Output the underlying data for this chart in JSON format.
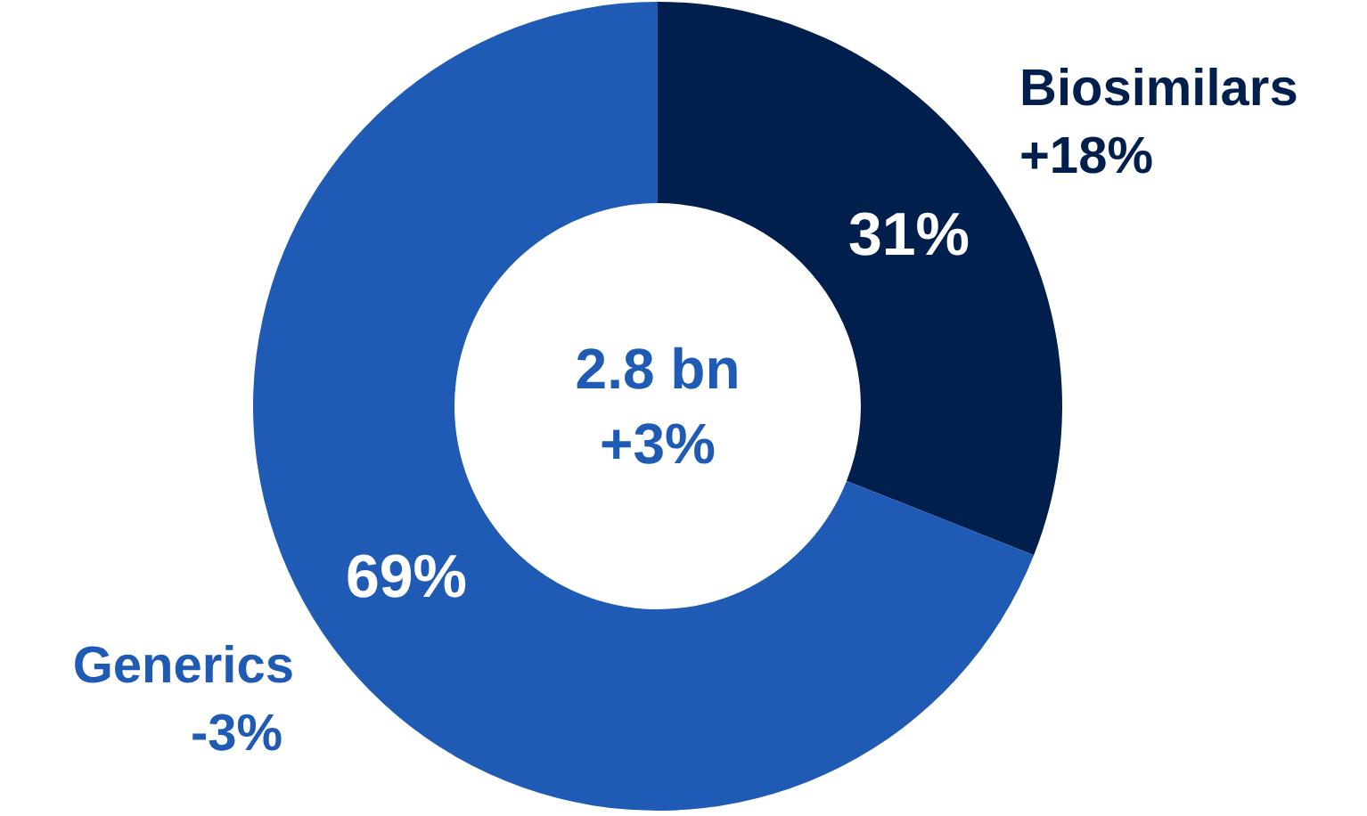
{
  "chart_data": {
    "type": "donut",
    "categories": [
      "Biosimilars",
      "Generics"
    ],
    "values": [
      31,
      69
    ],
    "value_labels": [
      "31%",
      "69%"
    ],
    "colors": [
      "#001f4d",
      "#1f5bb5"
    ],
    "annotations": [
      "2.8 bn",
      "+3%",
      {
        "text": "+18%",
        "x": "Biosimilars"
      },
      {
        "text": "-3%",
        "x": "Generics"
      }
    ]
  }
}
